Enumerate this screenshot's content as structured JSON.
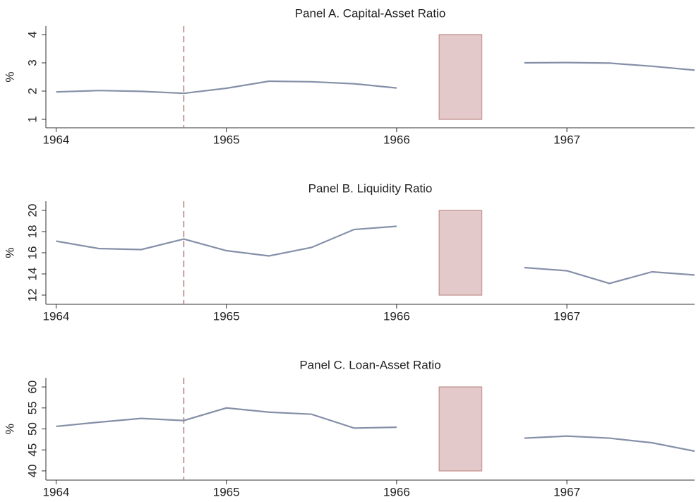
{
  "chart_data": [
    {
      "type": "line",
      "title": "Panel A. Capital-Asset Ratio",
      "ylabel": "%",
      "color": "#8590a8",
      "x": [
        1964,
        1964.25,
        1964.5,
        1964.75,
        1965,
        1965.25,
        1965.5,
        1965.75,
        1966,
        1966.25,
        1966.5,
        1966.75,
        1967,
        1967.25,
        1967.5,
        1967.75
      ],
      "values": [
        1.97,
        2.02,
        1.99,
        1.92,
        2.1,
        2.35,
        2.33,
        2.26,
        2.11,
        null,
        null,
        3.0,
        3.01,
        2.99,
        2.88,
        2.74
      ],
      "xlim": [
        1963.94,
        1967.75
      ],
      "xticks": [
        1964,
        1965,
        1966,
        1967
      ],
      "ylim": [
        0.7,
        4.3
      ],
      "yticks": [
        1,
        2,
        3,
        4
      ],
      "vline": 1964.75,
      "shade": {
        "x": [
          1966.25,
          1966.5
        ],
        "y": [
          1,
          4
        ]
      }
    },
    {
      "type": "line",
      "title": "Panel B. Liquidity Ratio",
      "ylabel": "%",
      "color": "#8590a8",
      "x": [
        1964,
        1964.25,
        1964.5,
        1964.75,
        1965,
        1965.25,
        1965.5,
        1965.75,
        1966,
        1966.25,
        1966.5,
        1966.75,
        1967,
        1967.25,
        1967.5,
        1967.75
      ],
      "values": [
        17.1,
        16.4,
        16.3,
        17.3,
        16.2,
        15.7,
        16.5,
        18.2,
        18.5,
        null,
        null,
        14.6,
        14.3,
        13.1,
        14.2,
        13.9
      ],
      "xlim": [
        1963.94,
        1967.75
      ],
      "xticks": [
        1964,
        1965,
        1966,
        1967
      ],
      "ylim": [
        11.13,
        20.87
      ],
      "yticks": [
        12,
        14,
        16,
        18,
        20
      ],
      "vline": 1964.75,
      "shade": {
        "x": [
          1966.25,
          1966.5
        ],
        "y": [
          12,
          20
        ]
      }
    },
    {
      "type": "line",
      "title": "Panel C. Loan-Asset Ratio",
      "ylabel": "%",
      "color": "#8590a8",
      "x": [
        1964,
        1964.25,
        1964.5,
        1964.75,
        1965,
        1965.25,
        1965.5,
        1965.75,
        1966,
        1966.25,
        1966.5,
        1966.75,
        1967,
        1967.25,
        1967.5,
        1967.75
      ],
      "values": [
        50.6,
        51.6,
        52.5,
        52.0,
        55.0,
        54.0,
        53.5,
        50.2,
        50.4,
        null,
        null,
        47.8,
        48.3,
        47.8,
        46.7,
        44.7
      ],
      "xlim": [
        1963.94,
        1967.75
      ],
      "xticks": [
        1964,
        1965,
        1966,
        1967
      ],
      "ylim": [
        37.8,
        62.2
      ],
      "yticks": [
        40,
        45,
        50,
        55,
        60
      ],
      "vline": 1964.75,
      "shade": {
        "x": [
          1966.25,
          1966.5
        ],
        "y": [
          40,
          60
        ]
      }
    }
  ]
}
